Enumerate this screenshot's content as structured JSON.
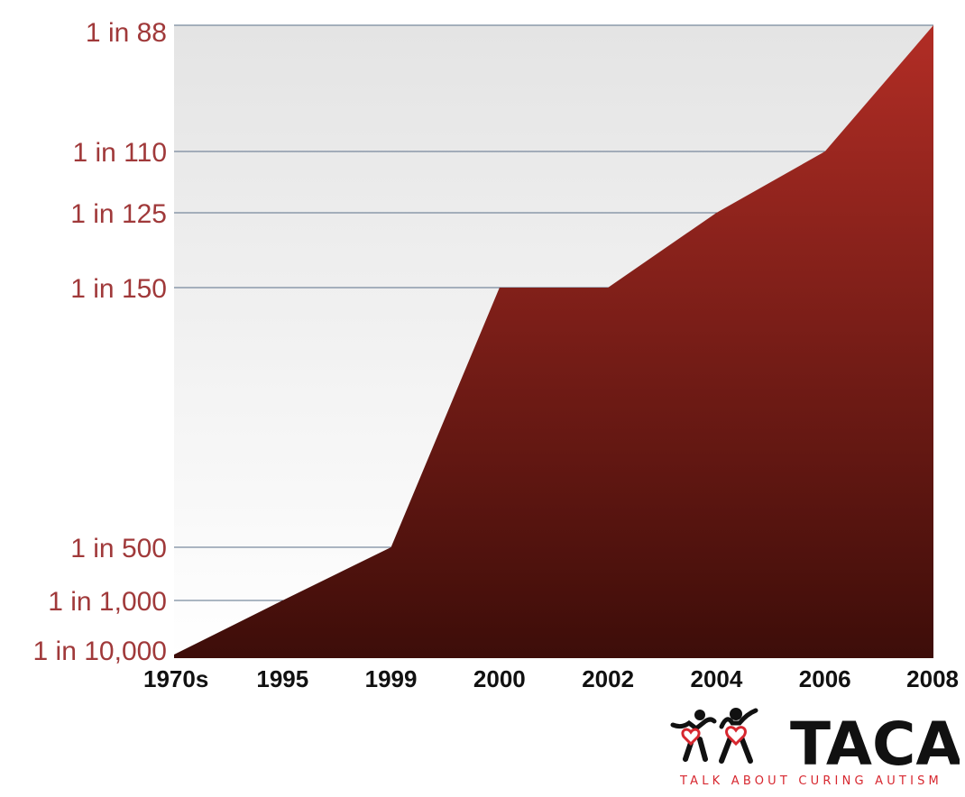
{
  "chart_data": {
    "type": "area",
    "x": [
      "1970s",
      "1995",
      "1999",
      "2000",
      "2002",
      "2004",
      "2006",
      "2008"
    ],
    "values": [
      "1 in 10,000",
      "1 in 1,000",
      "1 in 500",
      "1 in 150",
      "1 in 150",
      "1 in 125",
      "1 in 110",
      "1 in 88"
    ],
    "y_denominators": [
      10000,
      1000,
      500,
      150,
      150,
      125,
      110,
      88
    ],
    "ytick_labels": [
      "1 in 88",
      "1 in 110",
      "1 in 125",
      "1 in 150",
      "1 in 500",
      "1 in 1,000",
      "1 in 10,000"
    ],
    "ytick_denominators": [
      88,
      110,
      125,
      150,
      500,
      1000,
      10000
    ],
    "title": "",
    "xlabel": "",
    "ylabel": "",
    "grid": "horizontal lines at each tick",
    "legend": "none",
    "colors": {
      "area_top": "#b22d25",
      "area_bottom": "#3d0d09",
      "tick_label": "#a0393a",
      "gridline": "#5a6f88",
      "background_top": "#e4e4e4",
      "background_bottom": "#ffffff"
    }
  },
  "logo": {
    "name": "TACA",
    "tagline": "TALK ABOUT CURING AUTISM",
    "icon": "two-figures-with-hearts-icon",
    "color_dark": "#111111",
    "color_red": "#d7272f"
  }
}
